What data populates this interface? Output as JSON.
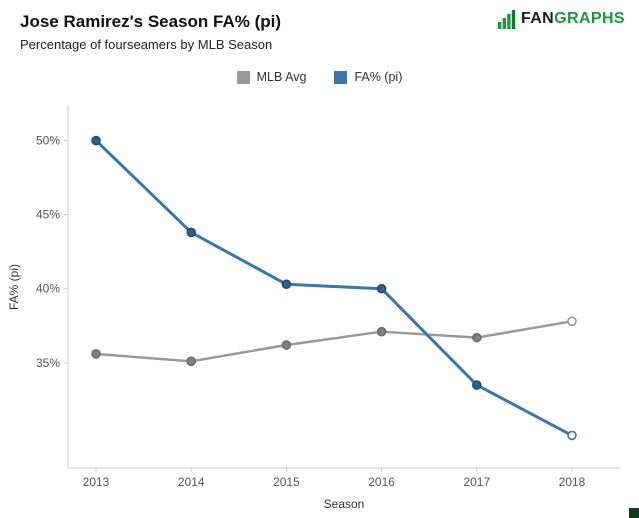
{
  "header": {
    "title": "Jose Ramirez's Season FA% (pi)",
    "subtitle": "Percentage of fourseamers by MLB Season"
  },
  "logo": {
    "fan": "FAN",
    "graphs": "GRAPHS",
    "green": "#169c38",
    "dark": "#1d1d1d"
  },
  "legend": [
    {
      "label": "MLB Avg",
      "color": "#999999"
    },
    {
      "label": "FA% (pi)",
      "color": "#3876ab"
    }
  ],
  "chart_data": {
    "type": "line",
    "title": "Jose Ramirez's Season FA% (pi)",
    "subtitle": "Percentage of fourseamers by MLB Season",
    "xlabel": "Season",
    "ylabel": "FA% (pi)",
    "x": [
      2013,
      2014,
      2015,
      2016,
      2017,
      2018
    ],
    "series": [
      {
        "name": "MLB Avg",
        "color": "#999999",
        "point_fill": "#808080",
        "point_stroke": "#6b6b6b",
        "width": 2.5,
        "last_point_open": true,
        "values": [
          35.6,
          35.1,
          36.2,
          37.1,
          36.7,
          37.8
        ]
      },
      {
        "name": "FA% (pi)",
        "color": "#3876ab",
        "point_fill": "#2b628f",
        "point_stroke": "#1f4d74",
        "width": 3,
        "last_point_open": true,
        "values": [
          50.0,
          43.8,
          40.3,
          40.0,
          33.5,
          30.1
        ]
      }
    ],
    "y_ticks": [
      35,
      40,
      45,
      50
    ],
    "y_tick_suffix": "%",
    "ylim": [
      27.9,
      52.4
    ],
    "grid": false,
    "legend_position": "top"
  }
}
